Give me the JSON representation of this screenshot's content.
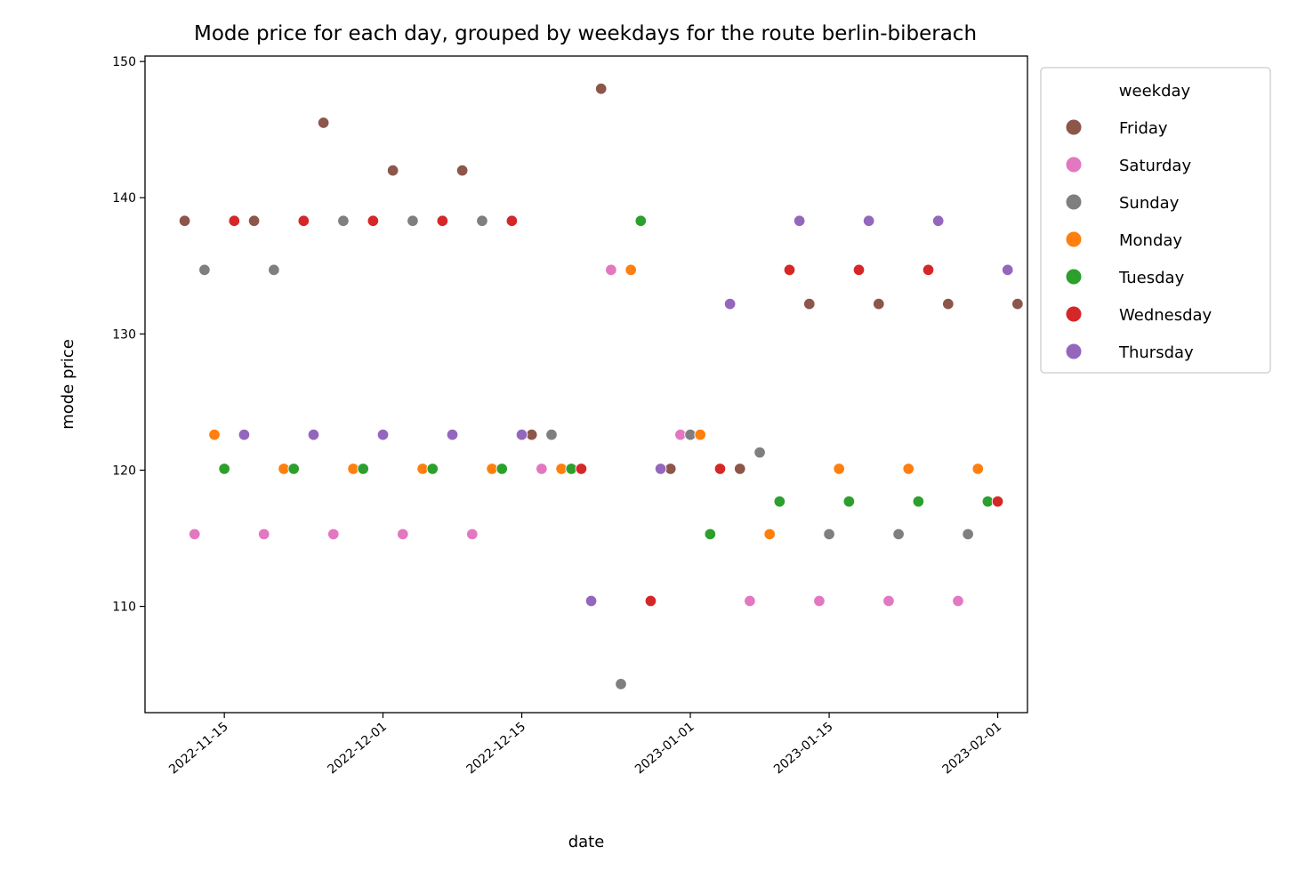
{
  "chart_data": {
    "type": "scatter",
    "title": "Mode price for each day, grouped by weekdays for the route berlin-biberach",
    "xlabel": "date",
    "ylabel": "mode price",
    "x_type": "date",
    "xlim": [
      "2022-11-07",
      "2023-02-04"
    ],
    "ylim": [
      102.2,
      150.4
    ],
    "x_ticks": [
      "2022-11-15",
      "2022-12-01",
      "2022-12-15",
      "2023-01-01",
      "2023-01-15",
      "2023-02-01"
    ],
    "y_ticks": [
      110,
      120,
      130,
      140,
      150
    ],
    "grid": false,
    "legend": {
      "title": "weekday",
      "placement": "outside-right"
    },
    "series": [
      {
        "name": "Friday",
        "color": "#8c564b",
        "points": [
          [
            "2022-11-11",
            138.3
          ],
          [
            "2022-11-18",
            138.3
          ],
          [
            "2022-11-25",
            145.5
          ],
          [
            "2022-12-02",
            142.0
          ],
          [
            "2022-12-09",
            142.0
          ],
          [
            "2022-12-16",
            122.6
          ],
          [
            "2022-12-23",
            148.0
          ],
          [
            "2022-12-30",
            120.1
          ],
          [
            "2023-01-06",
            120.1
          ],
          [
            "2023-01-13",
            132.2
          ],
          [
            "2023-01-20",
            132.2
          ],
          [
            "2023-01-27",
            132.2
          ],
          [
            "2023-02-03",
            132.2
          ]
        ]
      },
      {
        "name": "Saturday",
        "color": "#e377c2",
        "points": [
          [
            "2022-11-12",
            115.3
          ],
          [
            "2022-11-19",
            115.3
          ],
          [
            "2022-11-26",
            115.3
          ],
          [
            "2022-12-03",
            115.3
          ],
          [
            "2022-12-10",
            115.3
          ],
          [
            "2022-12-17",
            120.1
          ],
          [
            "2022-12-24",
            134.7
          ],
          [
            "2022-12-31",
            122.6
          ],
          [
            "2023-01-07",
            110.4
          ],
          [
            "2023-01-14",
            110.4
          ],
          [
            "2023-01-21",
            110.4
          ],
          [
            "2023-01-28",
            110.4
          ]
        ]
      },
      {
        "name": "Sunday",
        "color": "#7f7f7f",
        "points": [
          [
            "2022-11-13",
            134.7
          ],
          [
            "2022-11-20",
            134.7
          ],
          [
            "2022-11-27",
            138.3
          ],
          [
            "2022-12-04",
            138.3
          ],
          [
            "2022-12-11",
            138.3
          ],
          [
            "2022-12-18",
            122.6
          ],
          [
            "2022-12-25",
            104.3
          ],
          [
            "2023-01-01",
            122.6
          ],
          [
            "2023-01-08",
            121.3
          ],
          [
            "2023-01-15",
            115.3
          ],
          [
            "2023-01-22",
            115.3
          ],
          [
            "2023-01-29",
            115.3
          ]
        ]
      },
      {
        "name": "Monday",
        "color": "#ff7f0e",
        "points": [
          [
            "2022-11-14",
            122.6
          ],
          [
            "2022-11-21",
            120.1
          ],
          [
            "2022-11-28",
            120.1
          ],
          [
            "2022-12-05",
            120.1
          ],
          [
            "2022-12-12",
            120.1
          ],
          [
            "2022-12-19",
            120.1
          ],
          [
            "2022-12-26",
            134.7
          ],
          [
            "2023-01-02",
            122.6
          ],
          [
            "2023-01-09",
            115.3
          ],
          [
            "2023-01-16",
            120.1
          ],
          [
            "2023-01-23",
            120.1
          ],
          [
            "2023-01-30",
            120.1
          ]
        ]
      },
      {
        "name": "Tuesday",
        "color": "#2ca02c",
        "points": [
          [
            "2022-11-15",
            120.1
          ],
          [
            "2022-11-22",
            120.1
          ],
          [
            "2022-11-29",
            120.1
          ],
          [
            "2022-12-06",
            120.1
          ],
          [
            "2022-12-13",
            120.1
          ],
          [
            "2022-12-20",
            120.1
          ],
          [
            "2022-12-27",
            138.3
          ],
          [
            "2023-01-03",
            115.3
          ],
          [
            "2023-01-10",
            117.7
          ],
          [
            "2023-01-17",
            117.7
          ],
          [
            "2023-01-24",
            117.7
          ],
          [
            "2023-01-31",
            117.7
          ]
        ]
      },
      {
        "name": "Wednesday",
        "color": "#d62728",
        "points": [
          [
            "2022-11-16",
            138.3
          ],
          [
            "2022-11-23",
            138.3
          ],
          [
            "2022-11-30",
            138.3
          ],
          [
            "2022-12-07",
            138.3
          ],
          [
            "2022-12-14",
            138.3
          ],
          [
            "2022-12-21",
            120.1
          ],
          [
            "2022-12-28",
            110.4
          ],
          [
            "2023-01-04",
            120.1
          ],
          [
            "2023-01-11",
            134.7
          ],
          [
            "2023-01-18",
            134.7
          ],
          [
            "2023-01-25",
            134.7
          ],
          [
            "2023-02-01",
            117.7
          ]
        ]
      },
      {
        "name": "Thursday",
        "color": "#9467bd",
        "points": [
          [
            "2022-11-17",
            122.6
          ],
          [
            "2022-11-24",
            122.6
          ],
          [
            "2022-12-01",
            122.6
          ],
          [
            "2022-12-08",
            122.6
          ],
          [
            "2022-12-15",
            122.6
          ],
          [
            "2022-12-22",
            110.4
          ],
          [
            "2022-12-29",
            120.1
          ],
          [
            "2023-01-05",
            132.2
          ],
          [
            "2023-01-12",
            138.3
          ],
          [
            "2023-01-19",
            138.3
          ],
          [
            "2023-01-26",
            138.3
          ],
          [
            "2023-02-02",
            134.7
          ]
        ]
      }
    ]
  }
}
